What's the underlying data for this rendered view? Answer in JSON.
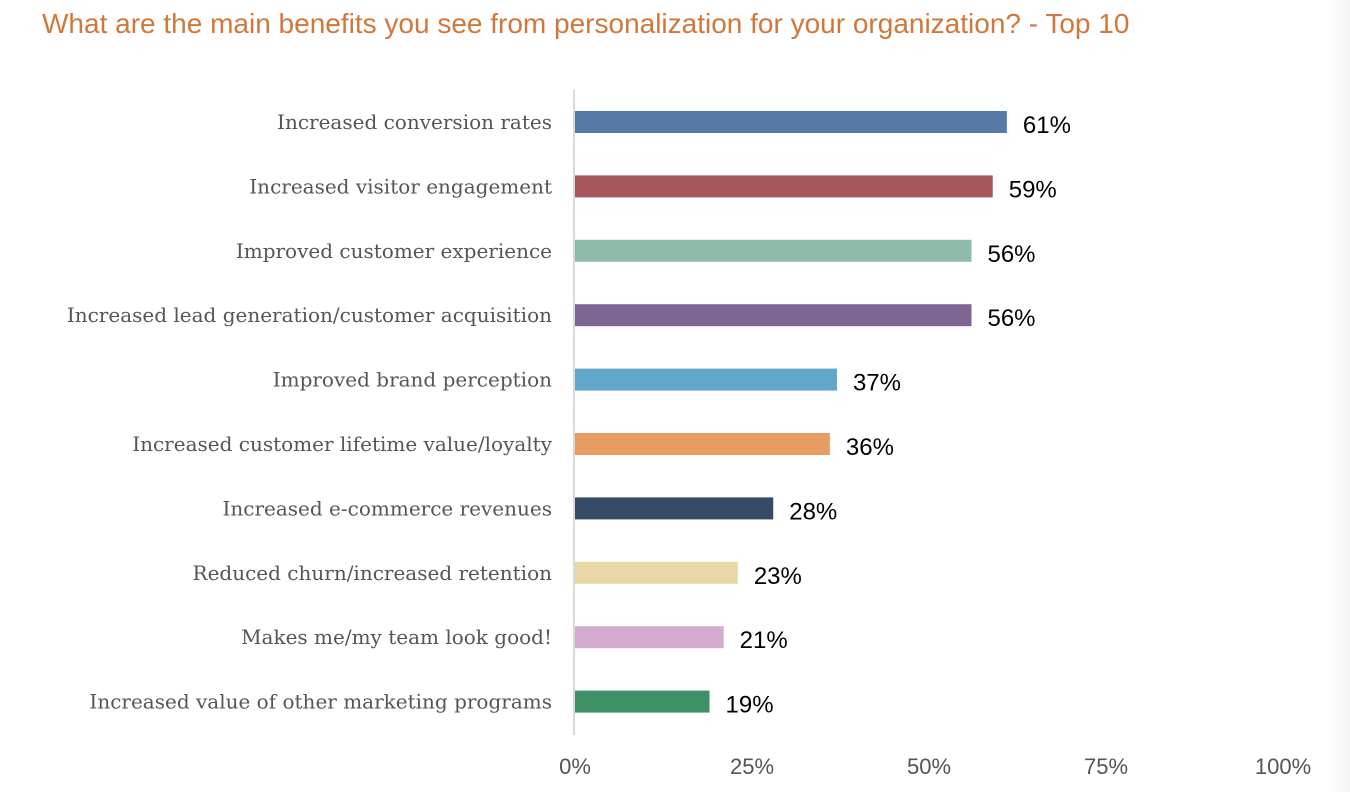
{
  "chart_data": {
    "type": "bar",
    "orientation": "horizontal",
    "title": "What are the main benefits you see from personalization for your organization? - Top 10",
    "categories": [
      "Increased conversion rates",
      "Increased visitor engagement",
      "Improved customer experience",
      "Increased lead generation/customer acquisition",
      "Improved brand perception",
      "Increased customer lifetime value/loyalty",
      "Increased e-commerce revenues",
      "Reduced churn/increased retention",
      "Makes me/my team look good!",
      "Increased value of other marketing programs"
    ],
    "values": [
      61,
      59,
      56,
      56,
      37,
      36,
      28,
      23,
      21,
      19
    ],
    "value_labels": [
      "61%",
      "59%",
      "56%",
      "56%",
      "37%",
      "36%",
      "28%",
      "23%",
      "21%",
      "19%"
    ],
    "colors": [
      "#5779A8",
      "#A65558",
      "#8FBAA9",
      "#7E6592",
      "#63A6CB",
      "#E69C63",
      "#354B66",
      "#E8D8A5",
      "#D2ABCF",
      "#3F8F67"
    ],
    "xlim": [
      0,
      100
    ],
    "x_ticks": [
      0,
      25,
      50,
      75,
      100
    ],
    "x_tick_labels": [
      "0%",
      "25%",
      "50%",
      "75%",
      "100%"
    ],
    "grid": false,
    "legend": "none"
  }
}
